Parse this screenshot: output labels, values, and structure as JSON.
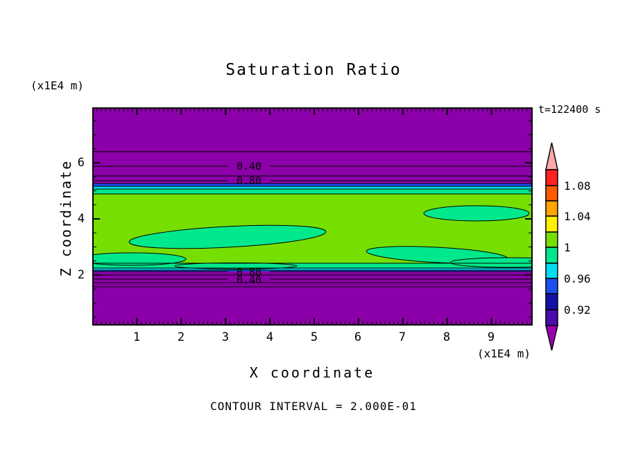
{
  "title": "Saturation Ratio",
  "time_label": "t=122400 s",
  "footer": "CONTOUR INTERVAL = 2.000E-01",
  "axes": {
    "x": {
      "title": "X coordinate",
      "unit": "(x1E4 m)",
      "tick_labels": [
        "1",
        "2",
        "3",
        "4",
        "5",
        "6",
        "7",
        "8",
        "9"
      ]
    },
    "y": {
      "title": "Z coordinate",
      "unit": "(x1E4 m)",
      "tick_labels": [
        "6",
        "4",
        "2"
      ]
    }
  },
  "contour_labels": {
    "top": [
      "0.40",
      "0.80"
    ],
    "bottom": [
      "0.80",
      "0.40"
    ]
  },
  "colorbar": {
    "labels": [
      "1.08",
      "1.04",
      "1",
      "0.96",
      "0.92"
    ],
    "over_color": "#FFAAAA",
    "under_color": "#9D00B4"
  },
  "palette": {
    "purple": "#8B00A8",
    "violet": "#4B0BAD",
    "navy": "#1212A8",
    "blue": "#1C50EE",
    "cyan": "#00DCF0",
    "spring": "#00E88C",
    "chartreuse": "#76DF00",
    "yellow": "#FFF000",
    "orange": "#FFA400",
    "orangered": "#FF5A00",
    "red": "#FF2222",
    "pink": "#FFAAAA",
    "under": "#9D00B4"
  },
  "chart_data": {
    "type": "heatmap",
    "title": "Saturation Ratio",
    "xlabel": "X coordinate (x1E4 m)",
    "ylabel": "Z coordinate (x1E4 m)",
    "time": "t=122400 s",
    "x_range": [
      0,
      10
    ],
    "y_range": [
      0.2,
      8.0
    ],
    "contour_interval": 0.2,
    "colorbar_levels": [
      0.9,
      0.92,
      0.94,
      0.96,
      0.98,
      1.0,
      1.02,
      1.04,
      1.06,
      1.08,
      1.1
    ],
    "colorbar_step": 0.02,
    "colorbar_labeled": [
      1.08,
      1.04,
      1,
      0.96,
      0.92
    ],
    "horizontal_bands": [
      {
        "z_top": 8.0,
        "z_bottom": 5.25,
        "value": "< 0.90",
        "color": "#8B00A8"
      },
      {
        "z_top": 5.25,
        "z_bottom": 5.15,
        "value": "0.94-0.96",
        "color": "#1C50EE"
      },
      {
        "z_top": 5.15,
        "z_bottom": 5.05,
        "value": "0.96-0.98",
        "color": "#00DCF0"
      },
      {
        "z_top": 5.05,
        "z_bottom": 4.89,
        "value": "0.98-1.00",
        "color": "#00E88C"
      },
      {
        "z_top": 4.89,
        "z_bottom": 2.45,
        "value": "1.00-1.02",
        "color": "#76DF00"
      },
      {
        "z_top": 2.45,
        "z_bottom": 2.25,
        "value": "0.98-1.00",
        "color": "#00E88C"
      },
      {
        "z_top": 2.25,
        "z_bottom": 2.17,
        "value": "0.96-0.98",
        "color": "#00DCF0"
      },
      {
        "z_top": 2.17,
        "z_bottom": 2.12,
        "value": "0.94-0.96",
        "color": "#1C50EE"
      },
      {
        "z_top": 2.12,
        "z_bottom": 0.2,
        "value": "< 0.90",
        "color": "#8B00A8"
      }
    ],
    "line_contours": [
      {
        "level": 0.2,
        "z_upper": 6.4,
        "z_lower": 1.73
      },
      {
        "level": 0.4,
        "z_upper": 5.88,
        "z_lower": 1.85,
        "labeled": true
      },
      {
        "level": 0.6,
        "z_upper": 5.53,
        "z_lower": 1.97
      },
      {
        "level": 0.8,
        "z_upper": 5.36,
        "z_lower": 2.12,
        "labeled": true
      }
    ],
    "pockets_0.98_1.00": [
      {
        "x_range": [
          0.8,
          5.2
        ],
        "z_range": [
          2.9,
          3.7
        ]
      },
      {
        "x_range": [
          7.4,
          9.9
        ],
        "z_range": [
          3.9,
          4.4
        ]
      },
      {
        "x_range": [
          6.2,
          9.4
        ],
        "z_range": [
          2.4,
          3.0
        ]
      },
      {
        "x_range": [
          0.0,
          1.9
        ],
        "z_range": [
          2.3,
          2.8
        ]
      }
    ]
  }
}
